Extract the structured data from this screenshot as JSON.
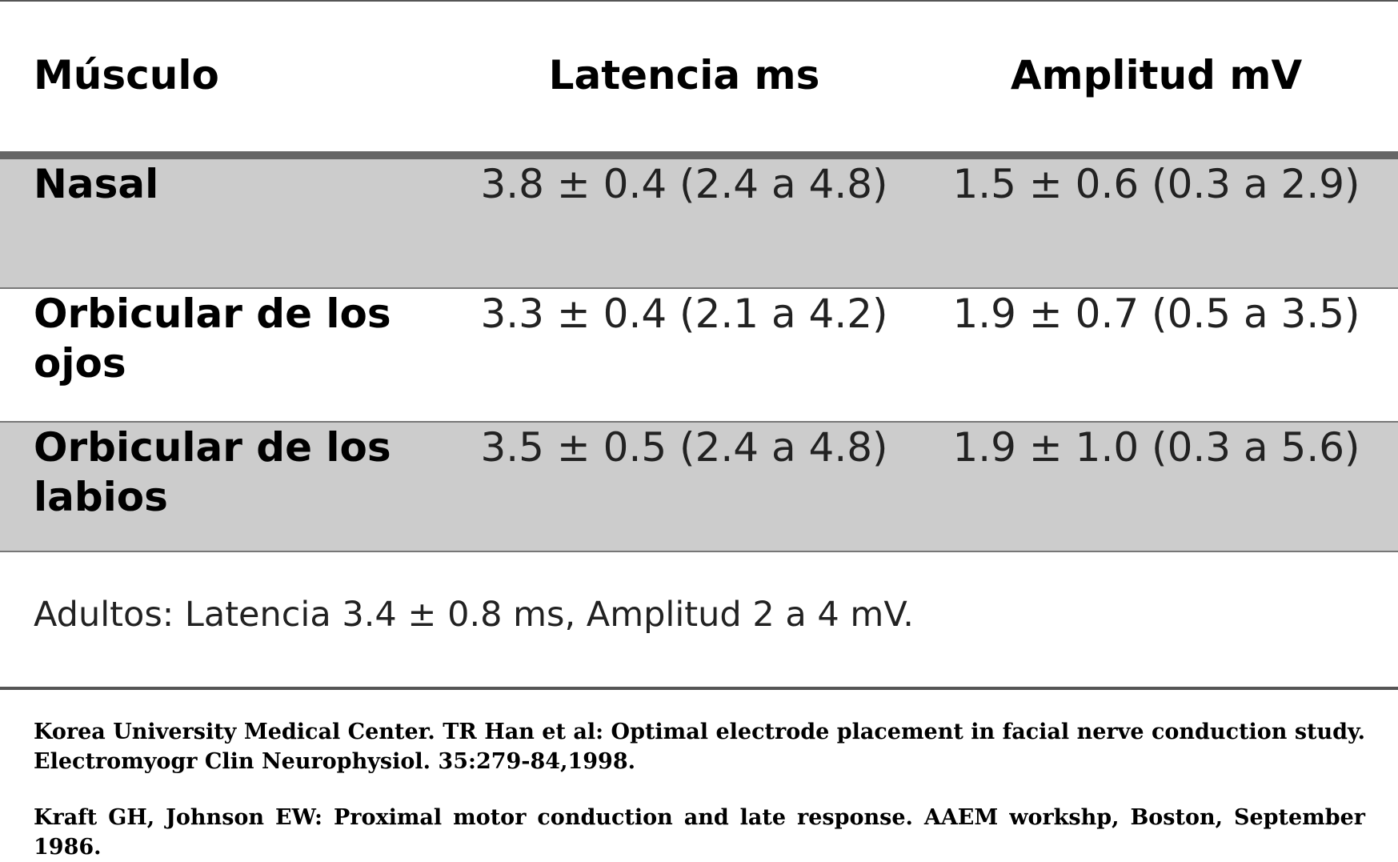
{
  "table": {
    "headers": {
      "muscle": "Músculo",
      "latency": "Latencia ms",
      "amplitude": "Amplitud mV"
    },
    "rows": [
      {
        "muscle": "Nasal",
        "latency": "3.8 ± 0.4 (2.4 a 4.8)",
        "amplitude": "1.5 ± 0.6 (0.3 a 2.9)"
      },
      {
        "muscle": "Orbicular de los ojos",
        "latency": "3.3 ± 0.4 (2.1 a 4.2)",
        "amplitude": "1.9 ± 0.7 (0.5 a 3.5)"
      },
      {
        "muscle": "Orbicular de los labios",
        "latency": "3.5 ± 0.5 (2.4 a 4.8)",
        "amplitude": "1.9 ± 1.0 (0.3 a 5.6)"
      }
    ]
  },
  "note": "Adultos: Latencia 3.4 ± 0.8 ms, Amplitud 2 a 4 mV.",
  "references": [
    "Korea University Medical Center. TR Han et al: Optimal electrode placement in facial nerve conduction study. Electromyogr Clin Neurophysiol. 35:279-84,1998.",
    "Kraft GH, Johnson EW: Proximal motor conduction and late response. AAEM workshp, Boston, September 1986."
  ],
  "colors": {
    "shaded_row": "#cccccc",
    "rule": "#666666"
  }
}
